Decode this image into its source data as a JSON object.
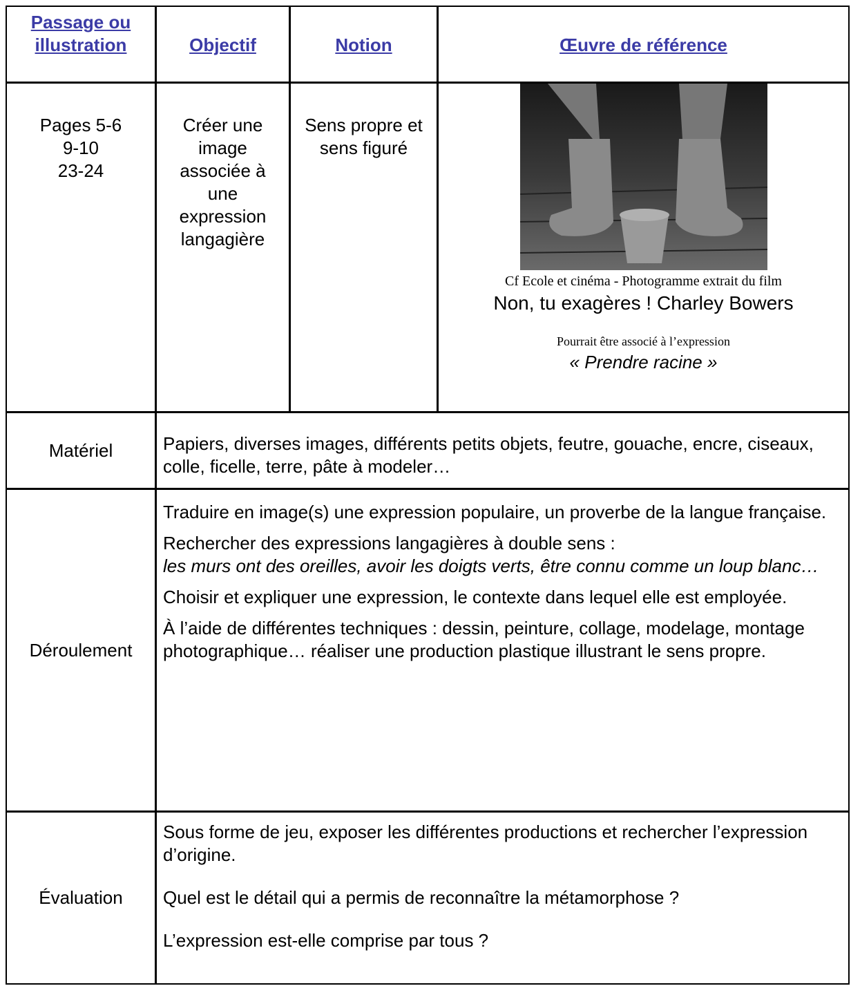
{
  "header": {
    "col1": "Passage ou illustration",
    "col2": "Objectif",
    "col3": "Notion",
    "col4": "Œuvre de référence"
  },
  "row1": {
    "pages": [
      "Pages 5-6",
      "9-10",
      "23-24"
    ],
    "objectif": "Créer une image associée à une expression langagière",
    "notion": "Sens propre et sens figuré",
    "caption": "Cf Ecole et cinéma - Photogramme extrait du film",
    "film": "Non, tu exagères ! Charley Bowers",
    "note": "Pourrait être associé à l’expression",
    "expression": "« Prendre racine »"
  },
  "materiel": {
    "label": "Matériel",
    "text": "Papiers, diverses images, différents petits objets, feutre, gouache, encre, ciseaux, colle, ficelle, terre, pâte à modeler…"
  },
  "deroulement": {
    "label": "Déroulement",
    "paragraphs": [
      {
        "text": "Traduire en image(s) une expression populaire, un proverbe de la langue française."
      },
      {
        "text": "Rechercher des expressions langagières à double sens :",
        "italic": "les murs ont des oreilles, avoir les doigts verts, être connu comme un loup blanc…"
      },
      {
        "text": "Choisir et expliquer une expression,  le contexte dans lequel elle est employée."
      },
      {
        "text": "À l’aide de différentes techniques : dessin, peinture, collage, modelage, montage photographique…  réaliser une production plastique illustrant le sens propre."
      }
    ]
  },
  "evaluation": {
    "label": "Évaluation",
    "paragraphs": [
      "Sous forme de jeu, exposer les différentes productions et rechercher l’expression d’origine.",
      "Quel est le détail qui a permis de reconnaître la métamorphose ?",
      "L’expression est-elle comprise par tous ?"
    ]
  }
}
